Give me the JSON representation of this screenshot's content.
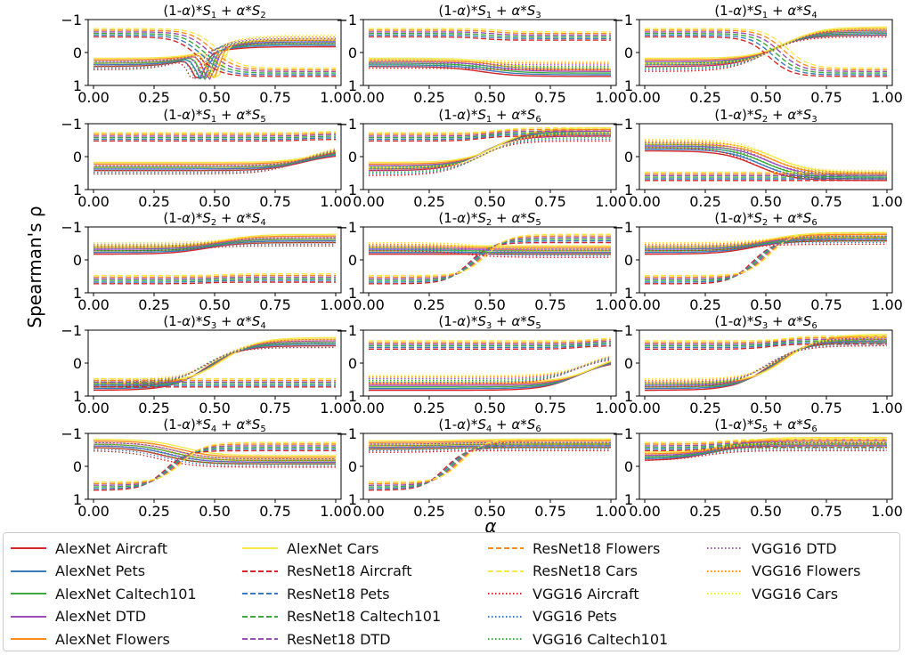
{
  "chart_data": {
    "type": "line",
    "grid": "3 columns x 5 rows of subplots",
    "ylabel": "Spearman's ρ",
    "xlabel": "α",
    "x_ticks": [
      "0.00",
      "0.25",
      "0.50",
      "0.75",
      "1.00"
    ],
    "y_ticks": [
      "−1",
      "0",
      "1"
    ],
    "xlim": [
      0,
      1
    ],
    "ylim": [
      -1,
      1
    ],
    "legend_placement": "bottom",
    "series_styles": {
      "AlexNet": "solid",
      "ResNet18": "dashed",
      "VGG16": "dotted"
    },
    "datasets": [
      "Aircraft",
      "Pets",
      "Caltech101",
      "DTD",
      "Flowers",
      "Cars"
    ],
    "dataset_colors": {
      "Aircraft": "#d62728",
      "Pets": "#3a7bbf",
      "Caltech101": "#3caa3c",
      "DTD": "#9a4fb5",
      "Flowers": "#ff8c1a",
      "Cars": "#f5e94a"
    },
    "legend": [
      "AlexNet Aircraft",
      "AlexNet Pets",
      "AlexNet Caltech101",
      "AlexNet DTD",
      "AlexNet Flowers",
      "AlexNet Cars",
      "ResNet18 Aircraft",
      "ResNet18 Pets",
      "ResNet18 Caltech101",
      "ResNet18 DTD",
      "ResNet18 Flowers",
      "ResNet18 Cars",
      "VGG16 Aircraft",
      "VGG16 Pets",
      "VGG16 Caltech101",
      "VGG16 DTD",
      "VGG16 Flowers",
      "VGG16 Cars"
    ],
    "subplots": [
      {
        "a": 1,
        "b": 2,
        "alex_start": -0.3,
        "alex_end": 0.3,
        "res_start": 0.6,
        "res_end": -0.6,
        "vgg_start": -0.4,
        "vgg_end": 0.4,
        "transition": 0.47,
        "dip": -0.9
      },
      {
        "a": 1,
        "b": 3,
        "alex_start": -0.3,
        "alex_end": -0.6,
        "res_start": 0.6,
        "res_end": 0.5,
        "vgg_start": -0.35,
        "vgg_end": -0.4,
        "transition": 0.5,
        "dip": 0
      },
      {
        "a": 1,
        "b": 4,
        "alex_start": -0.3,
        "alex_end": 0.65,
        "res_start": 0.6,
        "res_end": -0.6,
        "vgg_start": -0.45,
        "vgg_end": 0.6,
        "transition": 0.55,
        "dip": 0
      },
      {
        "a": 1,
        "b": 5,
        "alex_start": -0.3,
        "alex_end": 0.2,
        "res_start": 0.6,
        "res_end": 0.65,
        "vgg_start": -0.4,
        "vgg_end": 0.3,
        "transition": 0.9,
        "dip": 0
      },
      {
        "a": 1,
        "b": 6,
        "alex_start": -0.3,
        "alex_end": 0.75,
        "res_start": 0.6,
        "res_end": 0.75,
        "vgg_start": -0.45,
        "vgg_end": 0.6,
        "transition": 0.5,
        "dip": 0
      },
      {
        "a": 2,
        "b": 3,
        "alex_start": 0.3,
        "alex_end": -0.6,
        "res_start": -0.6,
        "res_end": -0.6,
        "vgg_start": 0.4,
        "vgg_end": -0.55,
        "transition": 0.5,
        "dip": 0
      },
      {
        "a": 2,
        "b": 4,
        "alex_start": 0.3,
        "alex_end": 0.65,
        "res_start": -0.6,
        "res_end": -0.55,
        "vgg_start": 0.4,
        "vgg_end": 0.55,
        "transition": 0.5,
        "dip": 0
      },
      {
        "a": 2,
        "b": 5,
        "alex_start": 0.3,
        "alex_end": 0.3,
        "res_start": -0.6,
        "res_end": 0.65,
        "vgg_start": 0.4,
        "vgg_end": 0.2,
        "transition": 0.45,
        "dip": 0
      },
      {
        "a": 2,
        "b": 6,
        "alex_start": 0.3,
        "alex_end": 0.7,
        "res_start": -0.6,
        "res_end": 0.7,
        "vgg_start": 0.4,
        "vgg_end": 0.6,
        "transition": 0.48,
        "dip": 0
      },
      {
        "a": 3,
        "b": 4,
        "alex_start": -0.7,
        "alex_end": 0.65,
        "res_start": -0.6,
        "res_end": -0.6,
        "vgg_start": -0.6,
        "vgg_end": 0.6,
        "transition": 0.5,
        "dip": 0
      },
      {
        "a": 3,
        "b": 5,
        "alex_start": -0.7,
        "alex_end": 0.2,
        "res_start": 0.55,
        "res_end": 0.65,
        "vgg_start": -0.5,
        "vgg_end": 0.3,
        "transition": 0.9,
        "dip": 0
      },
      {
        "a": 3,
        "b": 6,
        "alex_start": -0.7,
        "alex_end": 0.75,
        "res_start": 0.55,
        "res_end": 0.7,
        "vgg_start": -0.6,
        "vgg_end": 0.65,
        "transition": 0.55,
        "dip": 0
      },
      {
        "a": 4,
        "b": 5,
        "alex_start": 0.7,
        "alex_end": 0.2,
        "res_start": -0.6,
        "res_end": 0.6,
        "vgg_start": 0.6,
        "vgg_end": 0.1,
        "transition": 0.33,
        "dip": 0
      },
      {
        "a": 4,
        "b": 6,
        "alex_start": 0.65,
        "alex_end": 0.7,
        "res_start": -0.6,
        "res_end": 0.7,
        "vgg_start": 0.55,
        "vgg_end": 0.6,
        "transition": 0.35,
        "dip": 0
      },
      {
        "a": 5,
        "b": 6,
        "alex_start": 0.3,
        "alex_end": 0.75,
        "res_start": 0.6,
        "res_end": 0.7,
        "vgg_start": 0.3,
        "vgg_end": 0.6,
        "transition": 0.3,
        "dip": 0
      }
    ]
  }
}
